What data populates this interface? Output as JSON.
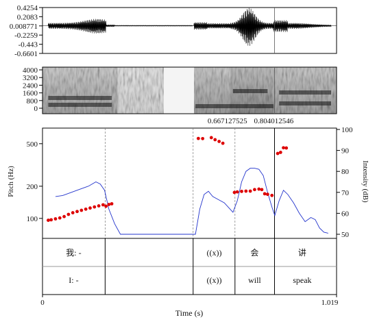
{
  "chart_data": [
    {
      "type": "line",
      "panel": "waveform",
      "ytick_labels": [
        "0.4254",
        "0.2083",
        "0.008771",
        "-0.2259",
        "-0.443",
        "-0.6601"
      ],
      "ylim": [
        -0.6601,
        0.4254
      ],
      "xlim": [
        0,
        1.019
      ]
    },
    {
      "type": "heatmap",
      "panel": "spectrogram",
      "ytick_labels": [
        "4000",
        "3200",
        "2400",
        "1600",
        "800",
        "0"
      ],
      "ylim": [
        0,
        4000
      ],
      "xlim": [
        0,
        1.019
      ]
    },
    {
      "type": "scatter",
      "panel": "pitch_intensity",
      "xlabel": "Time (s)",
      "ylabel": "Pitch (Hz)",
      "y2label": "Intensity (dB)",
      "xlim": [
        0,
        1.019
      ],
      "x_tick_labels": [
        "0",
        "1.019"
      ],
      "y_tick_labels": [
        "100",
        "200",
        "500"
      ],
      "y_scale": "log",
      "y2_tick_labels": [
        "50",
        "60",
        "70",
        "80",
        "90",
        "100"
      ],
      "y2lim": [
        50,
        100
      ],
      "cursor_labels": [
        "0.667127525",
        "0.804012546"
      ],
      "cursor_times": [
        0.667127525,
        0.804012546
      ],
      "boundaries": [
        0.217,
        0.522,
        0.667,
        0.804
      ],
      "series": [
        {
          "kind": "pitch",
          "color": "#dd0000",
          "points": [
            [
              0.02,
              96
            ],
            [
              0.03,
              97
            ],
            [
              0.045,
              99
            ],
            [
              0.06,
              101
            ],
            [
              0.075,
              104
            ],
            [
              0.09,
              109
            ],
            [
              0.105,
              113
            ],
            [
              0.12,
              116
            ],
            [
              0.135,
              119
            ],
            [
              0.15,
              122
            ],
            [
              0.165,
              125
            ],
            [
              0.18,
              128
            ],
            [
              0.195,
              131
            ],
            [
              0.21,
              134
            ],
            [
              0.22,
              130
            ],
            [
              0.23,
              135
            ],
            [
              0.24,
              137
            ],
            [
              0.54,
              560
            ],
            [
              0.555,
              558
            ],
            [
              0.585,
              570
            ],
            [
              0.598,
              545
            ],
            [
              0.612,
              525
            ],
            [
              0.625,
              505
            ],
            [
              0.665,
              175
            ],
            [
              0.675,
              177
            ],
            [
              0.69,
              179
            ],
            [
              0.705,
              180
            ],
            [
              0.72,
              180
            ],
            [
              0.735,
              186
            ],
            [
              0.75,
              188
            ],
            [
              0.76,
              186
            ],
            [
              0.77,
              170
            ],
            [
              0.78,
              168
            ],
            [
              0.795,
              164
            ],
            [
              0.815,
              405
            ],
            [
              0.825,
              415
            ],
            [
              0.835,
              458
            ],
            [
              0.845,
              456
            ]
          ]
        },
        {
          "kind": "intensity",
          "color": "#2233cc",
          "points": [
            [
              0.045,
              68
            ],
            [
              0.07,
              68.5
            ],
            [
              0.1,
              70
            ],
            [
              0.13,
              71.5
            ],
            [
              0.16,
              73
            ],
            [
              0.185,
              75
            ],
            [
              0.2,
              74
            ],
            [
              0.215,
              71
            ],
            [
              0.23,
              62
            ],
            [
              0.25,
              55
            ],
            [
              0.27,
              50
            ],
            [
              0.53,
              50
            ],
            [
              0.545,
              62
            ],
            [
              0.56,
              69
            ],
            [
              0.575,
              70.5
            ],
            [
              0.59,
              68
            ],
            [
              0.61,
              66.5
            ],
            [
              0.63,
              65
            ],
            [
              0.65,
              62
            ],
            [
              0.66,
              60.5
            ],
            [
              0.675,
              66
            ],
            [
              0.69,
              75
            ],
            [
              0.705,
              80
            ],
            [
              0.72,
              81.5
            ],
            [
              0.735,
              81.5
            ],
            [
              0.75,
              81
            ],
            [
              0.765,
              78
            ],
            [
              0.78,
              70
            ],
            [
              0.795,
              63
            ],
            [
              0.805,
              59
            ],
            [
              0.82,
              66
            ],
            [
              0.835,
              71
            ],
            [
              0.85,
              69
            ],
            [
              0.87,
              65
            ],
            [
              0.89,
              60
            ],
            [
              0.91,
              56
            ],
            [
              0.93,
              58
            ],
            [
              0.945,
              57
            ],
            [
              0.96,
              53
            ],
            [
              0.975,
              51
            ],
            [
              0.99,
              50.5
            ]
          ]
        }
      ]
    }
  ],
  "tiers": [
    {
      "intervals": [
        {
          "label": "我: -",
          "x": 0.108
        },
        {
          "label": "((x))",
          "x": 0.595
        },
        {
          "label": "会",
          "x": 0.735
        },
        {
          "label": "讲",
          "x": 0.9
        }
      ]
    },
    {
      "intervals": [
        {
          "label": "I: -",
          "x": 0.108
        },
        {
          "label": "((x))",
          "x": 0.595
        },
        {
          "label": "will",
          "x": 0.735
        },
        {
          "label": "speak",
          "x": 0.9
        }
      ]
    }
  ]
}
